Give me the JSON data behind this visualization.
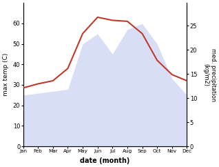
{
  "months": [
    "Jan",
    "Feb",
    "Mar",
    "Apr",
    "May",
    "Jun",
    "Jul",
    "Aug",
    "Sep",
    "Oct",
    "Nov",
    "Dec"
  ],
  "month_positions": [
    1,
    2,
    3,
    4,
    5,
    6,
    7,
    8,
    9,
    10,
    11,
    12
  ],
  "temperature": [
    28.5,
    30.5,
    32.0,
    38.0,
    55.0,
    63.0,
    61.5,
    61.0,
    55.0,
    42.0,
    35.0,
    32.0
  ],
  "precip_right": [
    10.6,
    11.0,
    11.4,
    11.8,
    21.2,
    23.3,
    19.1,
    24.2,
    25.4,
    21.2,
    14.0,
    10.6
  ],
  "temp_color": "#c0392b",
  "precip_fill_color": "#b8c4ee",
  "left_label": "max temp (C)",
  "right_label": "med. precipitation\n(kg/m2)",
  "xlabel": "date (month)",
  "ylim_left": [
    0,
    70
  ],
  "ylim_right": [
    0,
    29.7
  ],
  "yticks_left": [
    0,
    10,
    20,
    30,
    40,
    50,
    60
  ],
  "yticks_right": [
    0,
    5,
    10,
    15,
    20,
    25
  ],
  "figwidth": 3.18,
  "figheight": 2.42,
  "dpi": 100
}
